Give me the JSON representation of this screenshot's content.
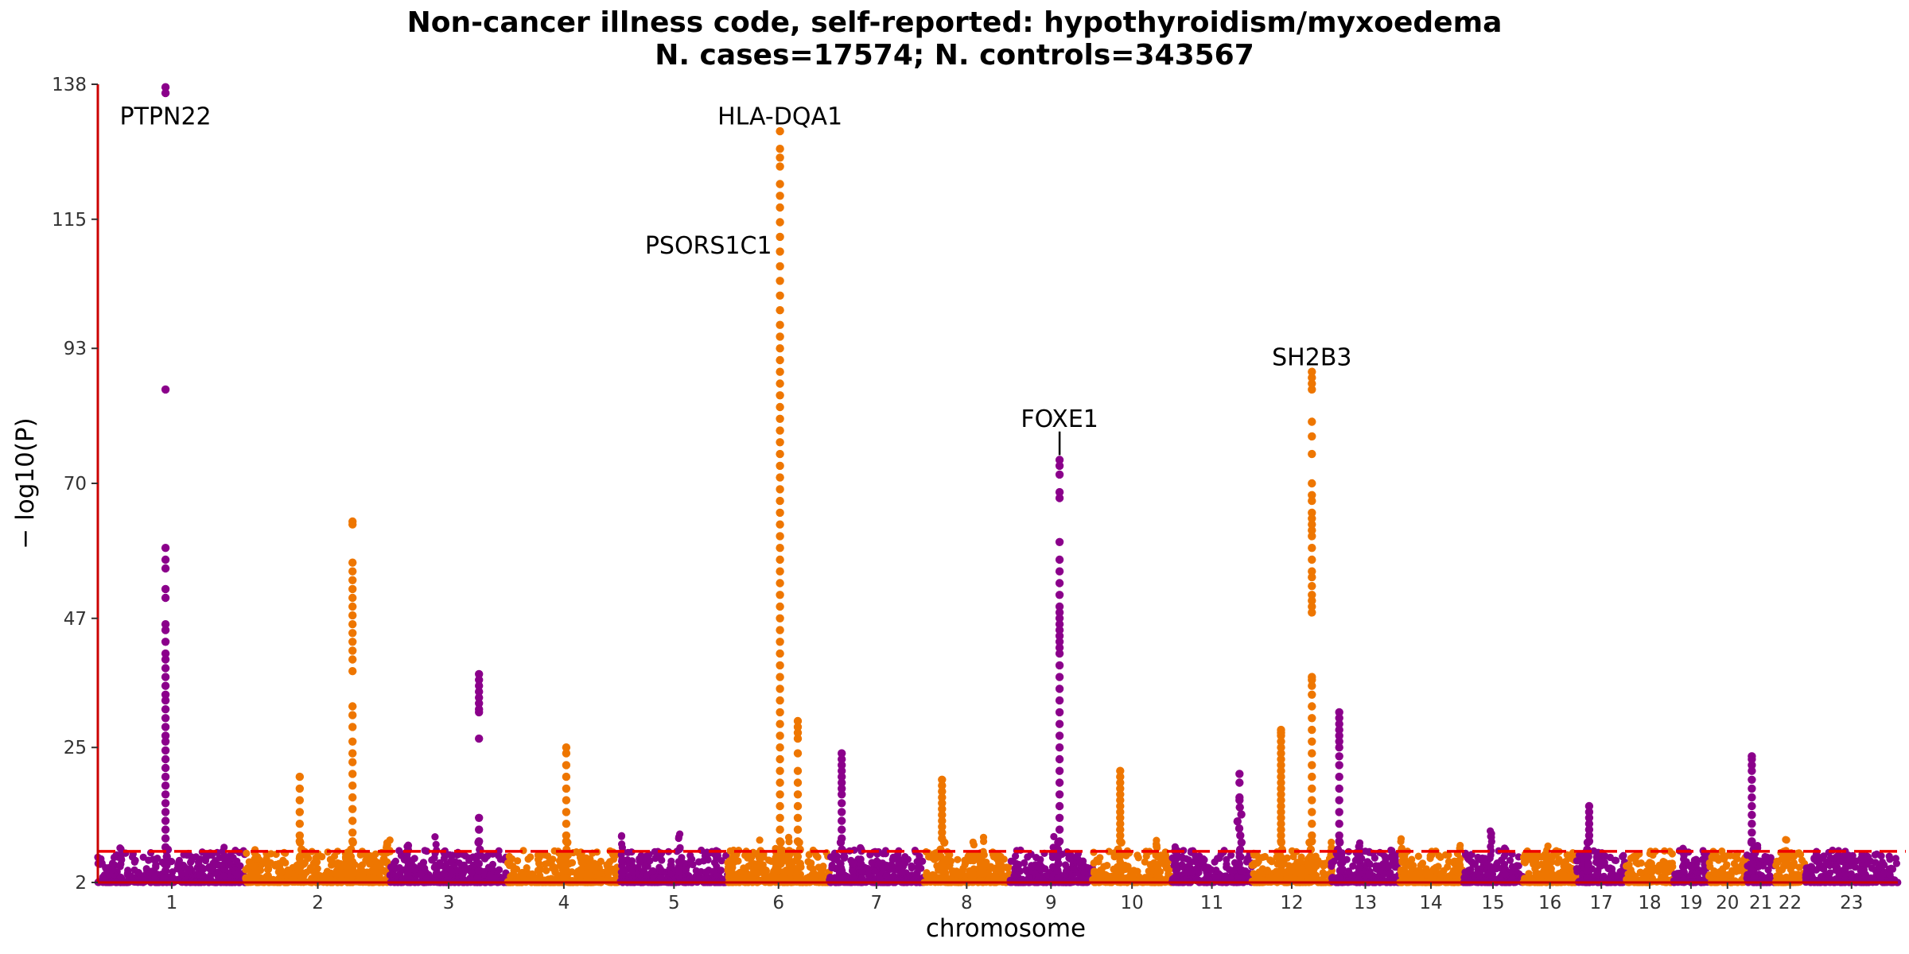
{
  "chart_data": {
    "type": "scatter",
    "subtype": "manhattan",
    "title": "Non-cancer illness code, self-reported: hypothyroidism/myxoedema",
    "subtitle": "N. cases=17574; N. controls=343567",
    "xlabel": "chromosome",
    "ylabel": "− log10(P)",
    "ylim": [
      2,
      138
    ],
    "yticks": [
      2,
      25,
      47,
      70,
      93,
      115,
      138
    ],
    "significance_threshold": 7.3,
    "colors": {
      "odd": "#8B008B",
      "even": "#EE7600",
      "threshold": "#EE0000",
      "axis": "#CC0000"
    },
    "grid": false,
    "legend": "none",
    "chromosomes": [
      {
        "chr": "1",
        "start": 0,
        "end": 249
      },
      {
        "chr": "2",
        "start": 249,
        "end": 492
      },
      {
        "chr": "3",
        "start": 492,
        "end": 690
      },
      {
        "chr": "4",
        "start": 690,
        "end": 880
      },
      {
        "chr": "5",
        "start": 880,
        "end": 1061
      },
      {
        "chr": "6",
        "start": 1061,
        "end": 1232
      },
      {
        "chr": "7",
        "start": 1232,
        "end": 1391
      },
      {
        "chr": "8",
        "start": 1391,
        "end": 1536
      },
      {
        "chr": "9",
        "start": 1536,
        "end": 1675
      },
      {
        "chr": "10",
        "start": 1675,
        "end": 1809
      },
      {
        "chr": "11",
        "start": 1809,
        "end": 1944
      },
      {
        "chr": "12",
        "start": 1944,
        "end": 2078
      },
      {
        "chr": "13",
        "start": 2078,
        "end": 2192
      },
      {
        "chr": "14",
        "start": 2192,
        "end": 2299
      },
      {
        "chr": "15",
        "start": 2299,
        "end": 2401
      },
      {
        "chr": "16",
        "start": 2401,
        "end": 2491
      },
      {
        "chr": "17",
        "start": 2491,
        "end": 2574
      },
      {
        "chr": "18",
        "start": 2574,
        "end": 2654
      },
      {
        "chr": "19",
        "start": 2654,
        "end": 2713
      },
      {
        "chr": "20",
        "start": 2713,
        "end": 2777
      },
      {
        "chr": "21",
        "start": 2777,
        "end": 2825
      },
      {
        "chr": "22",
        "start": 2825,
        "end": 2876
      },
      {
        "chr": "23",
        "start": 2876,
        "end": 3032
      }
    ],
    "peaks": [
      {
        "x": 114,
        "values": [
          137.5,
          136.5,
          86,
          59,
          57,
          55.5,
          52,
          50.5,
          46,
          45,
          43,
          41,
          40,
          38.5,
          37,
          35.5,
          34,
          33,
          31.5,
          30,
          28.5,
          27,
          26,
          24.5,
          23,
          21.5,
          20,
          18.5,
          17,
          15.5,
          14,
          12.5,
          11,
          9.5,
          8
        ]
      },
      {
        "x": 429,
        "values": [
          63.5,
          63,
          56.5,
          55,
          53.5,
          52,
          50.5,
          49,
          47.5,
          46,
          44.5,
          43,
          41.5,
          40,
          38,
          32,
          30.5,
          28.5,
          26,
          24,
          22.5,
          20.5,
          18.5,
          16.5,
          14.5,
          12.5,
          10.5,
          9
        ]
      },
      {
        "x": 642,
        "values": [
          37.5,
          36.5,
          35.5,
          34.5,
          33.5,
          32.5,
          31.5,
          31,
          26.5,
          13,
          11,
          9
        ]
      },
      {
        "x": 789,
        "values": [
          25,
          24,
          22,
          20,
          18,
          16,
          14,
          12,
          10,
          9
        ]
      },
      {
        "x": 1149,
        "values": [
          130,
          127,
          125.5,
          124,
          121,
          119,
          117,
          114.5,
          112,
          109.5,
          107,
          104.5,
          102,
          99.5,
          97,
          95,
          93,
          91,
          89,
          87,
          85,
          83,
          81,
          79,
          77,
          75,
          73,
          71,
          69,
          67,
          65,
          63,
          61,
          59,
          57,
          55,
          53,
          51,
          49,
          47,
          45,
          43,
          41,
          39,
          37,
          35,
          33,
          31,
          29,
          27,
          25,
          23,
          21,
          19,
          17,
          15,
          13,
          11,
          9
        ]
      },
      {
        "x": 1179,
        "values": [
          29.5,
          28.5,
          27.5,
          26.5,
          24,
          21,
          19,
          17,
          15,
          13,
          11,
          9
        ]
      },
      {
        "x": 1253,
        "values": [
          24,
          23,
          22,
          21,
          20,
          19,
          18,
          17,
          15.5,
          14,
          12.5,
          11,
          9.5
        ]
      },
      {
        "x": 1422,
        "values": [
          19.5,
          18.5,
          17.5,
          16.5,
          15.5,
          14.5,
          13.5,
          12.5,
          11.5,
          10.5,
          9.5
        ]
      },
      {
        "x": 1620,
        "values": [
          74,
          73,
          71.5,
          68.5,
          67.5,
          60,
          57,
          55,
          53,
          51,
          49,
          48,
          47,
          46,
          45,
          44,
          43,
          42,
          41,
          39,
          37,
          35,
          33,
          31,
          29,
          27,
          25,
          23,
          21,
          19,
          17,
          15,
          13,
          11,
          9
        ]
      },
      {
        "x": 1722,
        "values": [
          21,
          20,
          19,
          18,
          17,
          16,
          15,
          14,
          13,
          12,
          11,
          10,
          9
        ]
      },
      {
        "x": 1993,
        "values": [
          28,
          27.5,
          27,
          26,
          25,
          24,
          23,
          22,
          21,
          20,
          19,
          18,
          17,
          16,
          15,
          14,
          13,
          12,
          11,
          10,
          9
        ]
      },
      {
        "x": 2045,
        "values": [
          89,
          88,
          87,
          86,
          80.5,
          78,
          75,
          70,
          68,
          67,
          65,
          64,
          63,
          62,
          61,
          59,
          57,
          55,
          54,
          52.5,
          51,
          50,
          49,
          48,
          37,
          36.5,
          35.5,
          34,
          32,
          30,
          28,
          26,
          24,
          22,
          20,
          18,
          16,
          14,
          12,
          10,
          9
        ]
      },
      {
        "x": 2091,
        "values": [
          31,
          30,
          29,
          28,
          27,
          26,
          25,
          23.5,
          22,
          20,
          18,
          16,
          14,
          12,
          10,
          9
        ]
      },
      {
        "x": 2512,
        "values": [
          15,
          14,
          13,
          12,
          11,
          10,
          9
        ]
      },
      {
        "x": 2786,
        "values": [
          23.5,
          23,
          22,
          21,
          19.5,
          18,
          16.5,
          15,
          13.5,
          12,
          10.5,
          9
        ]
      },
      {
        "x": 1923,
        "values": [
          20.5,
          19,
          16.5
        ]
      },
      {
        "x": 340,
        "values": [
          20,
          18,
          16,
          14,
          12,
          10,
          9
        ]
      }
    ],
    "annotations": [
      {
        "label": "PTPN22",
        "x": 114,
        "y": 137.5,
        "anchor": "middle",
        "label_y": 132.5
      },
      {
        "label": "HLA-DQA1",
        "x": 1149,
        "y": 130,
        "anchor": "middle",
        "label_y": 132.5
      },
      {
        "label": "PSORS1C1",
        "x": 1149,
        "y": 110,
        "anchor": "end",
        "label_y": 110.5
      },
      {
        "label": "FOXE1",
        "x": 1620,
        "y": 74,
        "anchor": "middle",
        "label_y": 81
      },
      {
        "label": "SH2B3",
        "x": 2045,
        "y": 89,
        "anchor": "middle",
        "label_y": 91.5
      }
    ]
  }
}
